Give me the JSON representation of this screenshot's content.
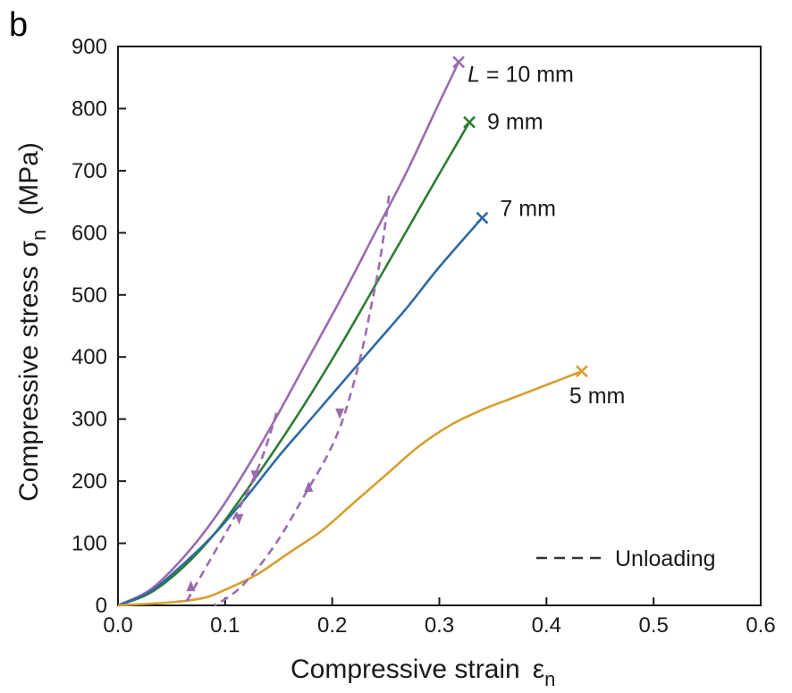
{
  "panel_label": "b",
  "chart_data": {
    "type": "line",
    "xlabel": "Compressive strain",
    "xlabel_symbol": "ε",
    "xlabel_subscript": "n",
    "ylabel": "Compressive stress",
    "ylabel_symbol": "σ",
    "ylabel_subscript": "n",
    "ylabel_unit": "(MPa)",
    "xlim": [
      0,
      0.6
    ],
    "ylim": [
      0,
      900
    ],
    "xticks": [
      0,
      0.1,
      0.2,
      0.3,
      0.4,
      0.5,
      0.6
    ],
    "xtick_labels": [
      "0.0",
      "0.1",
      "0.2",
      "0.3",
      "0.4",
      "0.5",
      "0.6"
    ],
    "yticks": [
      0,
      100,
      200,
      300,
      400,
      500,
      600,
      700,
      800,
      900
    ],
    "ytick_labels": [
      "0",
      "100",
      "200",
      "300",
      "400",
      "500",
      "600",
      "700",
      "800",
      "900"
    ],
    "grid": false,
    "legend": {
      "label": "Unloading",
      "style": "dashed",
      "placement": "bottom-right"
    },
    "series": [
      {
        "name": "L = 10 mm",
        "label_italic": "L",
        "label_rest": " = 10 mm",
        "color": "#9b6bb0",
        "marker_end": "x",
        "x": [
          0,
          0.03,
          0.06,
          0.09,
          0.12,
          0.15,
          0.18,
          0.21,
          0.24,
          0.27,
          0.3,
          0.318
        ],
        "y": [
          0,
          25,
          75,
          140,
          220,
          310,
          405,
          500,
          600,
          700,
          810,
          875
        ]
      },
      {
        "name": "9 mm",
        "color": "#2e7d32",
        "marker_end": "x",
        "x": [
          0,
          0.03,
          0.06,
          0.09,
          0.12,
          0.15,
          0.18,
          0.21,
          0.24,
          0.27,
          0.3,
          0.328
        ],
        "y": [
          0,
          20,
          60,
          115,
          185,
          260,
          340,
          425,
          515,
          605,
          695,
          778
        ]
      },
      {
        "name": "7 mm",
        "color": "#2e6aa0",
        "marker_end": "x",
        "x": [
          0,
          0.03,
          0.06,
          0.09,
          0.12,
          0.15,
          0.18,
          0.21,
          0.24,
          0.27,
          0.3,
          0.34
        ],
        "y": [
          0,
          22,
          65,
          115,
          175,
          240,
          300,
          360,
          420,
          480,
          545,
          624
        ]
      },
      {
        "name": "5 mm",
        "color": "#d4a030",
        "marker_end": "x",
        "x": [
          0,
          0.05,
          0.08,
          0.1,
          0.13,
          0.16,
          0.19,
          0.22,
          0.25,
          0.28,
          0.31,
          0.34,
          0.37,
          0.4,
          0.433
        ],
        "y": [
          0,
          5,
          12,
          25,
          50,
          85,
          120,
          165,
          210,
          255,
          290,
          315,
          335,
          355,
          377
        ]
      }
    ],
    "unloading": {
      "color": "#9b6bb0",
      "paths": [
        {
          "x": [
            0.148,
            0.135,
            0.12,
            0.105,
            0.09,
            0.075,
            0.062
          ],
          "y": [
            310,
            240,
            180,
            130,
            85,
            40,
            0
          ]
        },
        {
          "x": [
            0.253,
            0.245,
            0.235,
            0.225,
            0.21,
            0.195,
            0.175,
            0.155,
            0.135,
            0.115,
            0.1,
            0.09
          ],
          "y": [
            660,
            560,
            470,
            390,
            300,
            240,
            180,
            120,
            70,
            30,
            10,
            0
          ]
        }
      ],
      "arrows": [
        {
          "x": 0.128,
          "y": 210,
          "direction": "down"
        },
        {
          "x": 0.113,
          "y": 140,
          "direction": "down"
        },
        {
          "x": 0.068,
          "y": 30,
          "direction": "up"
        },
        {
          "x": 0.207,
          "y": 310,
          "direction": "down"
        },
        {
          "x": 0.178,
          "y": 190,
          "direction": "up"
        }
      ]
    }
  }
}
